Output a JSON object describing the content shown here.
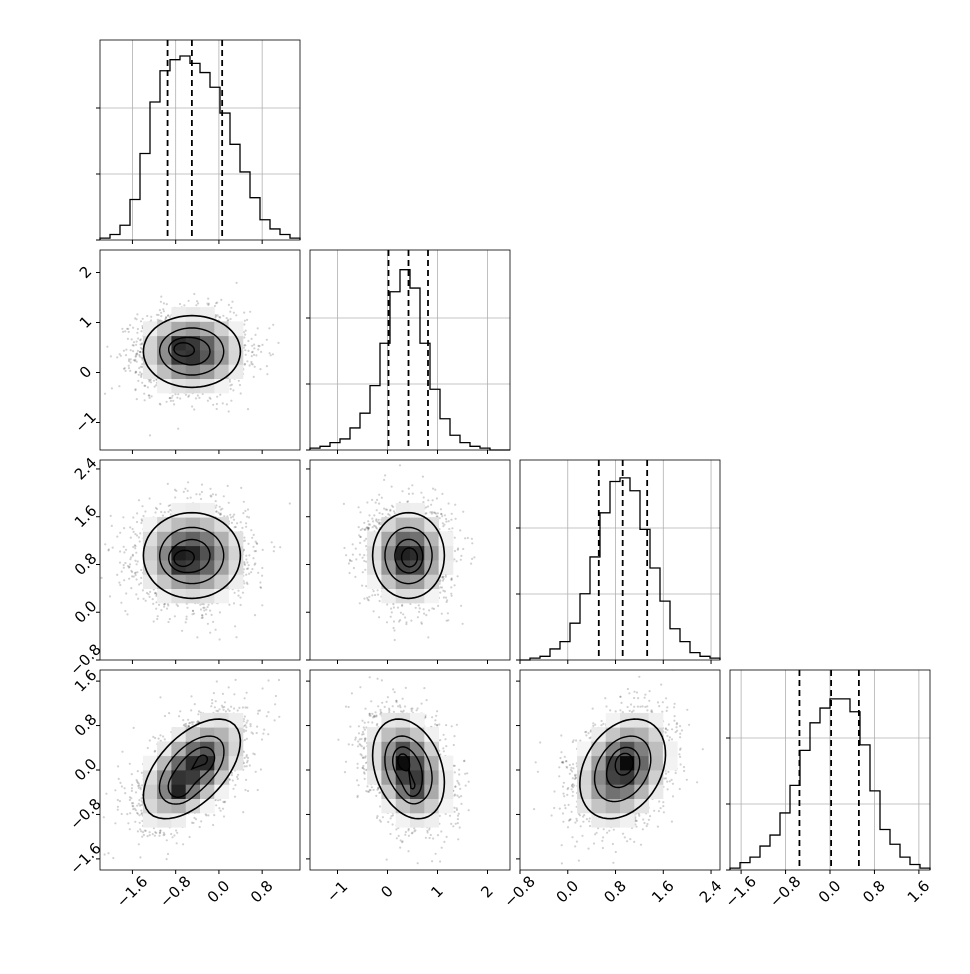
{
  "chart_data": {
    "type": "corner",
    "variables": [
      {
        "ticks": [
          -1.6,
          -0.8,
          0.0,
          0.8
        ],
        "tick_labels": [
          "−1.6",
          "−0.8",
          "0.0",
          "0.8"
        ],
        "range": [
          -2.2,
          1.5
        ]
      },
      {
        "ticks": [
          -1,
          0,
          1,
          2
        ],
        "tick_labels": [
          "−1",
          "0",
          "1",
          "2"
        ],
        "range": [
          -1.55,
          2.45
        ]
      },
      {
        "ticks": [
          -0.8,
          0.0,
          0.8,
          1.6,
          2.4
        ],
        "tick_labels": [
          "−0.8",
          "0.0",
          "0.8",
          "1.6",
          "2.4"
        ],
        "range": [
          -0.8,
          2.55
        ]
      },
      {
        "ticks": [
          -1.6,
          -0.8,
          0.0,
          0.8,
          1.6
        ],
        "tick_labels": [
          "−1.6",
          "−0.8",
          "0.0",
          "0.8",
          "1.6"
        ],
        "range": [
          -1.8,
          1.8
        ]
      }
    ],
    "histograms": [
      {
        "counts": [
          0.01,
          0.03,
          0.08,
          0.22,
          0.47,
          0.75,
          0.92,
          0.98,
          1.0,
          0.96,
          0.91,
          0.83,
          0.69,
          0.52,
          0.37,
          0.23,
          0.11,
          0.06,
          0.03,
          0.01
        ],
        "quantiles": [
          -0.95,
          -0.5,
          0.06
        ]
      },
      {
        "counts": [
          0.01,
          0.02,
          0.04,
          0.06,
          0.12,
          0.2,
          0.35,
          0.58,
          0.86,
          0.98,
          0.88,
          0.58,
          0.33,
          0.17,
          0.08,
          0.04,
          0.02,
          0.01,
          0.0,
          0.0
        ],
        "quantiles": [
          0.02,
          0.42,
          0.81
        ]
      },
      {
        "counts": [
          0.0,
          0.01,
          0.02,
          0.06,
          0.1,
          0.2,
          0.36,
          0.56,
          0.8,
          0.97,
          0.99,
          0.92,
          0.71,
          0.5,
          0.32,
          0.17,
          0.1,
          0.04,
          0.02,
          0.01
        ],
        "quantiles": [
          0.52,
          0.92,
          1.33
        ]
      },
      {
        "counts": [
          0.01,
          0.04,
          0.07,
          0.13,
          0.19,
          0.31,
          0.46,
          0.65,
          0.8,
          0.88,
          0.93,
          0.93,
          0.86,
          0.68,
          0.43,
          0.22,
          0.14,
          0.07,
          0.03,
          0.01
        ],
        "quantiles": [
          -0.55,
          0.02,
          0.52
        ]
      }
    ],
    "pairs": [
      {
        "row": 1,
        "col": 0,
        "mean": [
          -0.5,
          0.42
        ],
        "std": [
          0.5,
          0.4
        ],
        "corr": 0.0,
        "blobs": [
          [
            -0.72,
            0.48,
            1.0
          ]
        ]
      },
      {
        "row": 2,
        "col": 0,
        "mean": [
          -0.5,
          0.95
        ],
        "std": [
          0.5,
          0.4
        ],
        "corr": 0.0,
        "blobs": [
          [
            -0.72,
            0.88,
            1.0
          ]
        ]
      },
      {
        "row": 2,
        "col": 1,
        "mean": [
          0.42,
          0.95
        ],
        "std": [
          0.4,
          0.4
        ],
        "corr": 0.0,
        "blobs": [
          [
            0.45,
            0.9,
            1.0
          ]
        ]
      },
      {
        "row": 3,
        "col": 0,
        "mean": [
          -0.5,
          0.02
        ],
        "std": [
          0.5,
          0.5
        ],
        "corr": 0.55,
        "blobs": [
          [
            -0.75,
            -0.35,
            1.0
          ],
          [
            -0.25,
            0.2,
            0.6
          ]
        ]
      },
      {
        "row": 3,
        "col": 1,
        "mean": [
          0.42,
          0.02
        ],
        "std": [
          0.4,
          0.5
        ],
        "corr": -0.28,
        "blobs": [
          [
            0.5,
            -0.35,
            0.8
          ],
          [
            0.28,
            0.2,
            0.7
          ]
        ]
      },
      {
        "row": 3,
        "col": 2,
        "mean": [
          0.92,
          0.02
        ],
        "std": [
          0.4,
          0.5
        ],
        "corr": 0.3,
        "blobs": [
          [
            0.95,
            0.15,
            1.0
          ]
        ]
      }
    ],
    "grid": true,
    "axis_labels": [
      "",
      "",
      "",
      ""
    ],
    "title": ""
  }
}
